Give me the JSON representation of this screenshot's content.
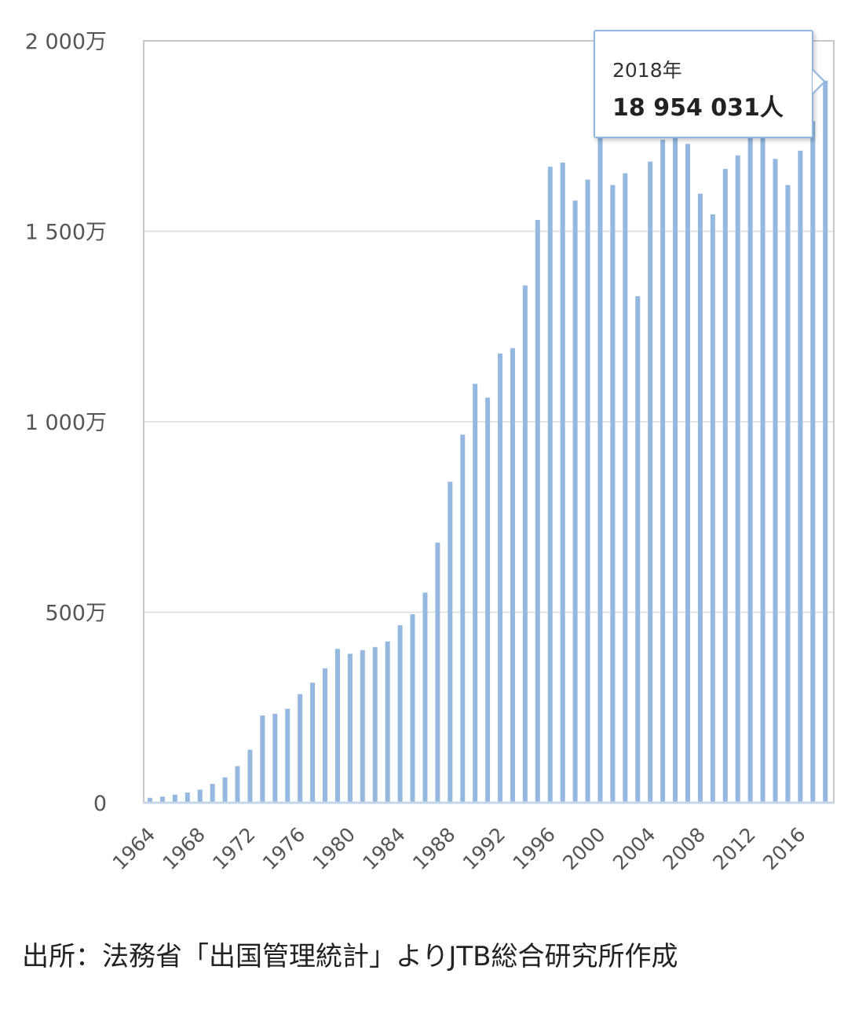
{
  "chart_data": {
    "type": "bar",
    "x": [
      1964,
      1965,
      1966,
      1967,
      1968,
      1969,
      1970,
      1971,
      1972,
      1973,
      1974,
      1975,
      1976,
      1977,
      1978,
      1979,
      1980,
      1981,
      1982,
      1983,
      1984,
      1985,
      1986,
      1987,
      1988,
      1989,
      1990,
      1991,
      1992,
      1993,
      1994,
      1995,
      1996,
      1997,
      1998,
      1999,
      2000,
      2001,
      2002,
      2003,
      2004,
      2005,
      2006,
      2007,
      2008,
      2009,
      2010,
      2011,
      2012,
      2013,
      2014,
      2015,
      2016,
      2017,
      2018
    ],
    "values": [
      127749,
      158827,
      212409,
      267538,
      343542,
      492880,
      663467,
      961135,
      1392045,
      2288966,
      2335530,
      2466326,
      2852584,
      3151431,
      3525110,
      4038298,
      3909333,
      4006388,
      4086138,
      4232246,
      4658833,
      4948366,
      5516193,
      6829338,
      8426867,
      9662752,
      10997431,
      10633777,
      11790699,
      11933620,
      13578934,
      15298125,
      16694769,
      16802750,
      15806218,
      16357572,
      17818590,
      16215657,
      16522804,
      13296330,
      16831112,
      17403565,
      17534565,
      17294935,
      15987250,
      15445684,
      16637224,
      16994200,
      18490657,
      17472748,
      16903388,
      16213789,
      17116420,
      17889292,
      18954031
    ],
    "xticks": [
      "1964",
      "1968",
      "1972",
      "1976",
      "1980",
      "1984",
      "1988",
      "1992",
      "1996",
      "2000",
      "2004",
      "2008",
      "2012",
      "2016"
    ],
    "yticks": [
      "0",
      "500万",
      "1 000万",
      "1 500万",
      "2 000万"
    ],
    "ylim": [
      0,
      20000000
    ],
    "bar_color": "#95b8e0",
    "grid": true
  },
  "tooltip": {
    "year_label": "2018年",
    "value_label": "18 954 031人"
  },
  "source_note": "出所：法務省「出国管理統計」よりJTB総合研究所作成"
}
